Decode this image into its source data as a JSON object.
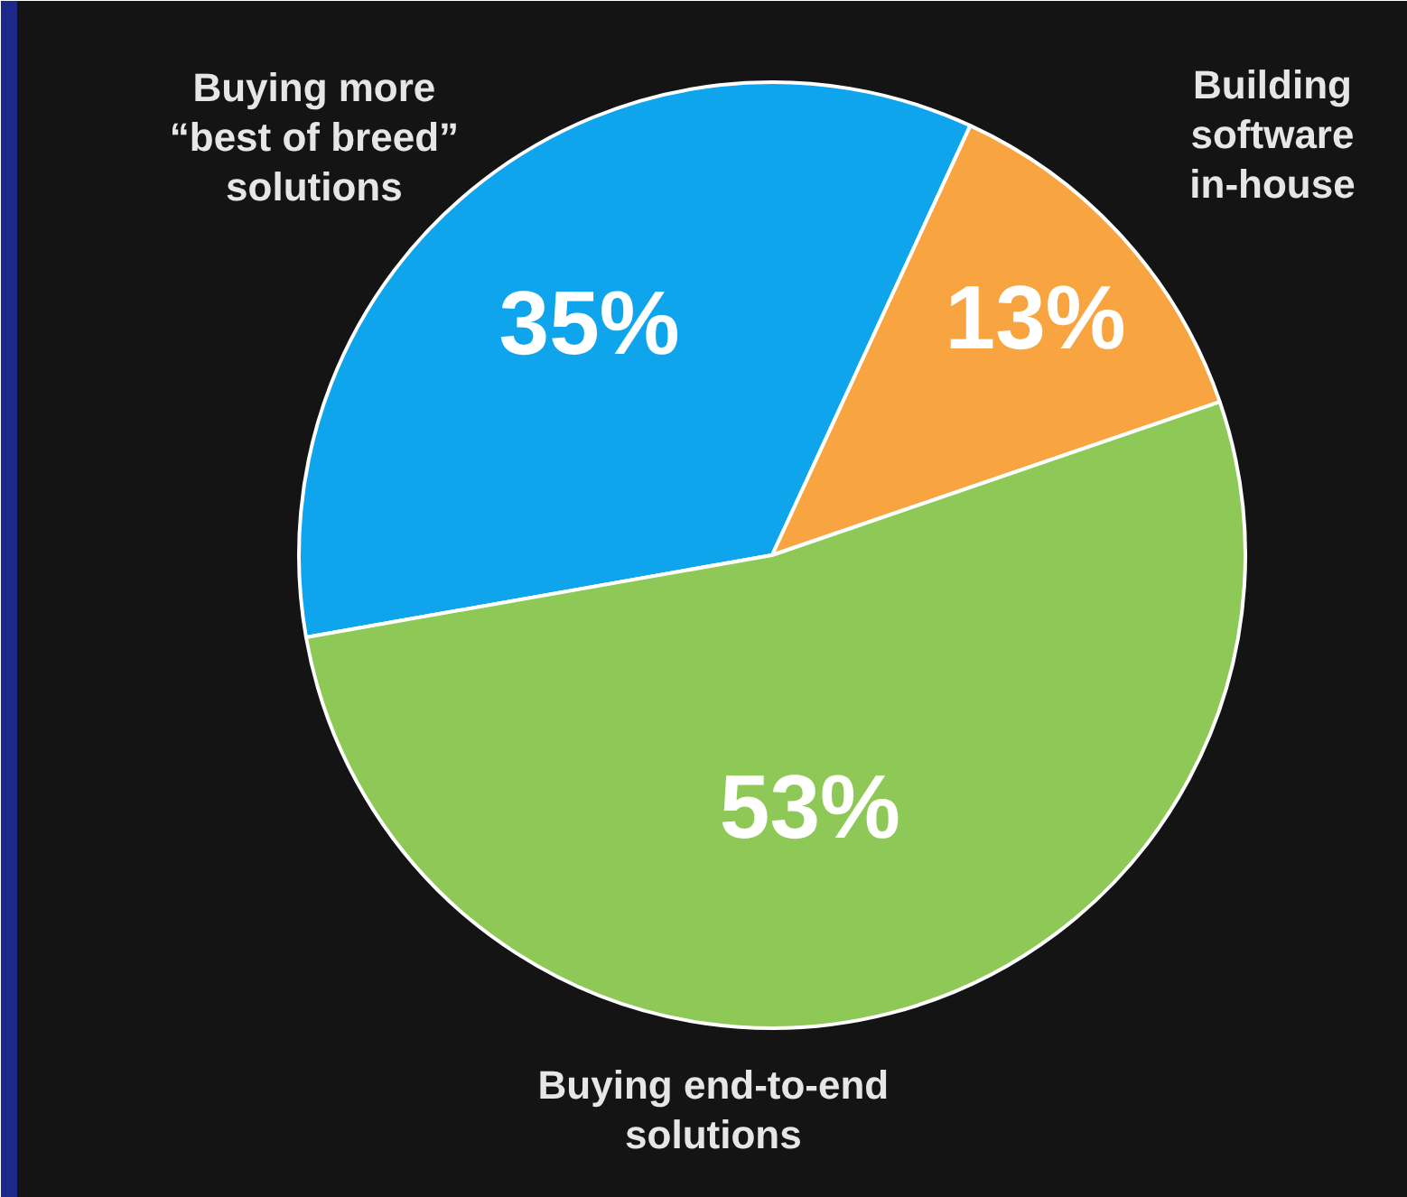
{
  "chart_data": {
    "type": "pie",
    "categories": [
      "Buying more\n“best of breed”\nsolutions",
      "Building\nsoftware\nin-house",
      "Buying end-to-end\nsolutions"
    ],
    "values": [
      35,
      13,
      53
    ],
    "colors": [
      "#0fa5ec",
      "#f8a541",
      "#8ec957"
    ],
    "value_labels": [
      "35%",
      "13%",
      "53%"
    ]
  }
}
